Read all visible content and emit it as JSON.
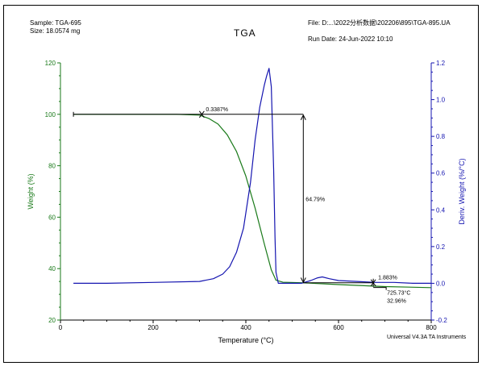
{
  "header": {
    "sample": "Sample: TGA-695",
    "size": "Size:  18.0574 mg",
    "file": "File: D:...\\2022分析数据\\202206\\895\\TGA-895.UA",
    "run_date": "Run Date: 24-Jun-2022 10:10"
  },
  "chart_data": {
    "type": "line",
    "title": "TGA",
    "xlabel": "Temperature (°C)",
    "ylabel": "Weight (%)",
    "y2label": "Deriv. Weight (%/°C)",
    "xlim": [
      0,
      800
    ],
    "ylim": [
      20,
      120
    ],
    "y2lim": [
      -0.2,
      1.2
    ],
    "x_ticks": [
      "0",
      "200",
      "400",
      "600",
      "800"
    ],
    "y_ticks": [
      "20",
      "40",
      "60",
      "80",
      "100",
      "120"
    ],
    "y2_ticks": [
      "-0.2",
      "0.0",
      "0.2",
      "0.4",
      "0.6",
      "0.8",
      "1.0",
      "1.2"
    ],
    "colors": {
      "weight": "#1a7a1a",
      "deriv": "#1515b0",
      "annot": "#000000"
    },
    "series": [
      {
        "axis": "left",
        "x": [
          28,
          150,
          250,
          300,
          320,
          340,
          360,
          380,
          400,
          420,
          440,
          455,
          465,
          480,
          520,
          600,
          700,
          800
        ],
        "y": [
          100,
          100,
          100,
          99.7,
          98.4,
          96.2,
          92.0,
          85.5,
          76.0,
          63.5,
          49.5,
          39.5,
          35.5,
          34.7,
          34.5,
          33.8,
          33.0,
          32.6
        ]
      },
      {
        "axis": "right",
        "x": [
          28,
          100,
          200,
          300,
          330,
          350,
          365,
          380,
          395,
          410,
          420,
          430,
          440,
          445,
          450,
          455,
          460,
          463,
          465,
          470,
          480,
          520,
          540,
          555,
          565,
          580,
          600,
          640,
          680,
          720,
          760,
          800
        ],
        "y": [
          0.0,
          0.0,
          0.005,
          0.01,
          0.025,
          0.05,
          0.09,
          0.17,
          0.3,
          0.55,
          0.78,
          0.96,
          1.08,
          1.13,
          1.17,
          1.07,
          0.62,
          0.25,
          0.06,
          0.0,
          0.0,
          0.0,
          0.015,
          0.03,
          0.035,
          0.025,
          0.015,
          0.01,
          0.005,
          0.005,
          0.0,
          0.0
        ]
      }
    ],
    "annotations": {
      "step1": {
        "label": "0.3387%",
        "x_start": 28,
        "x_end": 305,
        "weight": 100
      },
      "step2": {
        "label": "64.79%",
        "x": 524,
        "upper": 99.7,
        "lower": 34.6
      },
      "step3": {
        "label": "1.883%",
        "x_start": 524,
        "x_end": 675,
        "weight": 34.5
      },
      "residue": {
        "temp_label": "725.73°C",
        "pct_label": "32.96%",
        "x": 675,
        "weight": 32.96
      }
    }
  },
  "footer": "Universal V4.3A TA Instruments"
}
